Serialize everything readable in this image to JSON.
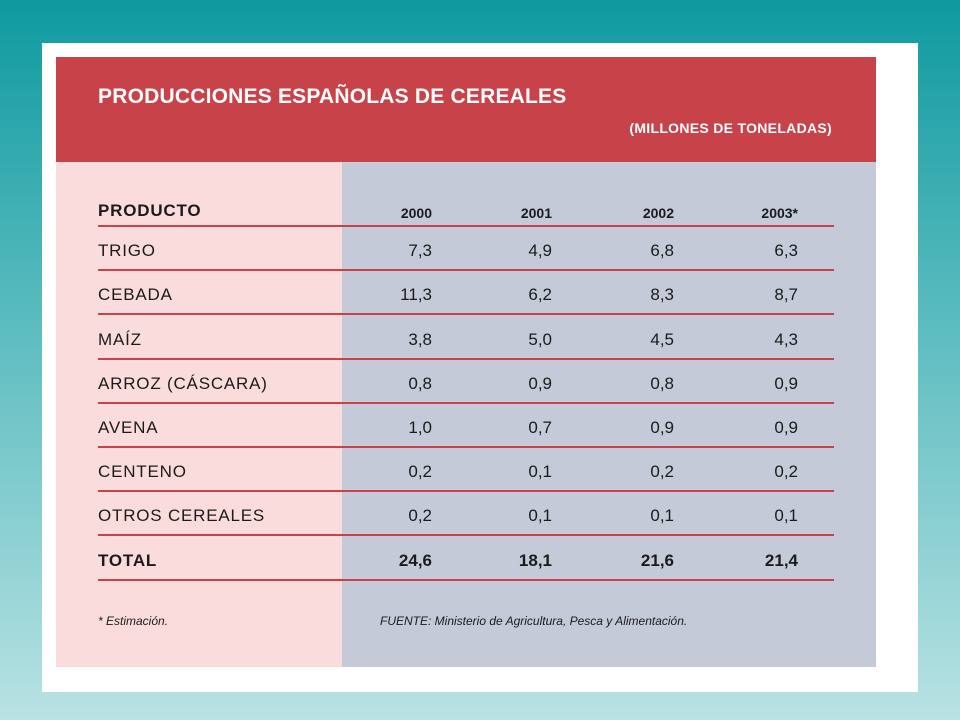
{
  "title": "PRODUCCIONES ESPAÑOLAS DE CEREALES",
  "subtitle": "(MILLONES DE TONELADAS)",
  "table": {
    "header": [
      "PRODUCTO",
      "2000",
      "2001",
      "2002",
      "2003*"
    ],
    "rows": [
      [
        "TRIGO",
        "7,3",
        "4,9",
        "6,8",
        "6,3"
      ],
      [
        "CEBADA",
        "11,3",
        "6,2",
        "8,3",
        "8,7"
      ],
      [
        "MAÍZ",
        "3,8",
        "5,0",
        "4,5",
        "4,3"
      ],
      [
        "ARROZ (CÁSCARA)",
        "0,8",
        "0,9",
        "0,8",
        "0,9"
      ],
      [
        "AVENA",
        "1,0",
        "0,7",
        "0,9",
        "0,9"
      ],
      [
        "CENTENO",
        "0,2",
        "0,1",
        "0,2",
        "0,2"
      ],
      [
        "OTROS CEREALES",
        "0,2",
        "0,1",
        "0,1",
        "0,1"
      ]
    ],
    "total": [
      "TOTAL",
      "24,6",
      "18,1",
      "21,6",
      "21,4"
    ]
  },
  "footnote": "* Estimación.",
  "source": "FUENTE: Ministerio de Agricultura, Pesca y Alimentación.",
  "colors": {
    "banner": "#c8424a",
    "left_panel": "#fbdcdc",
    "right_panel": "#c5cad9",
    "rule": "#c8424a"
  }
}
